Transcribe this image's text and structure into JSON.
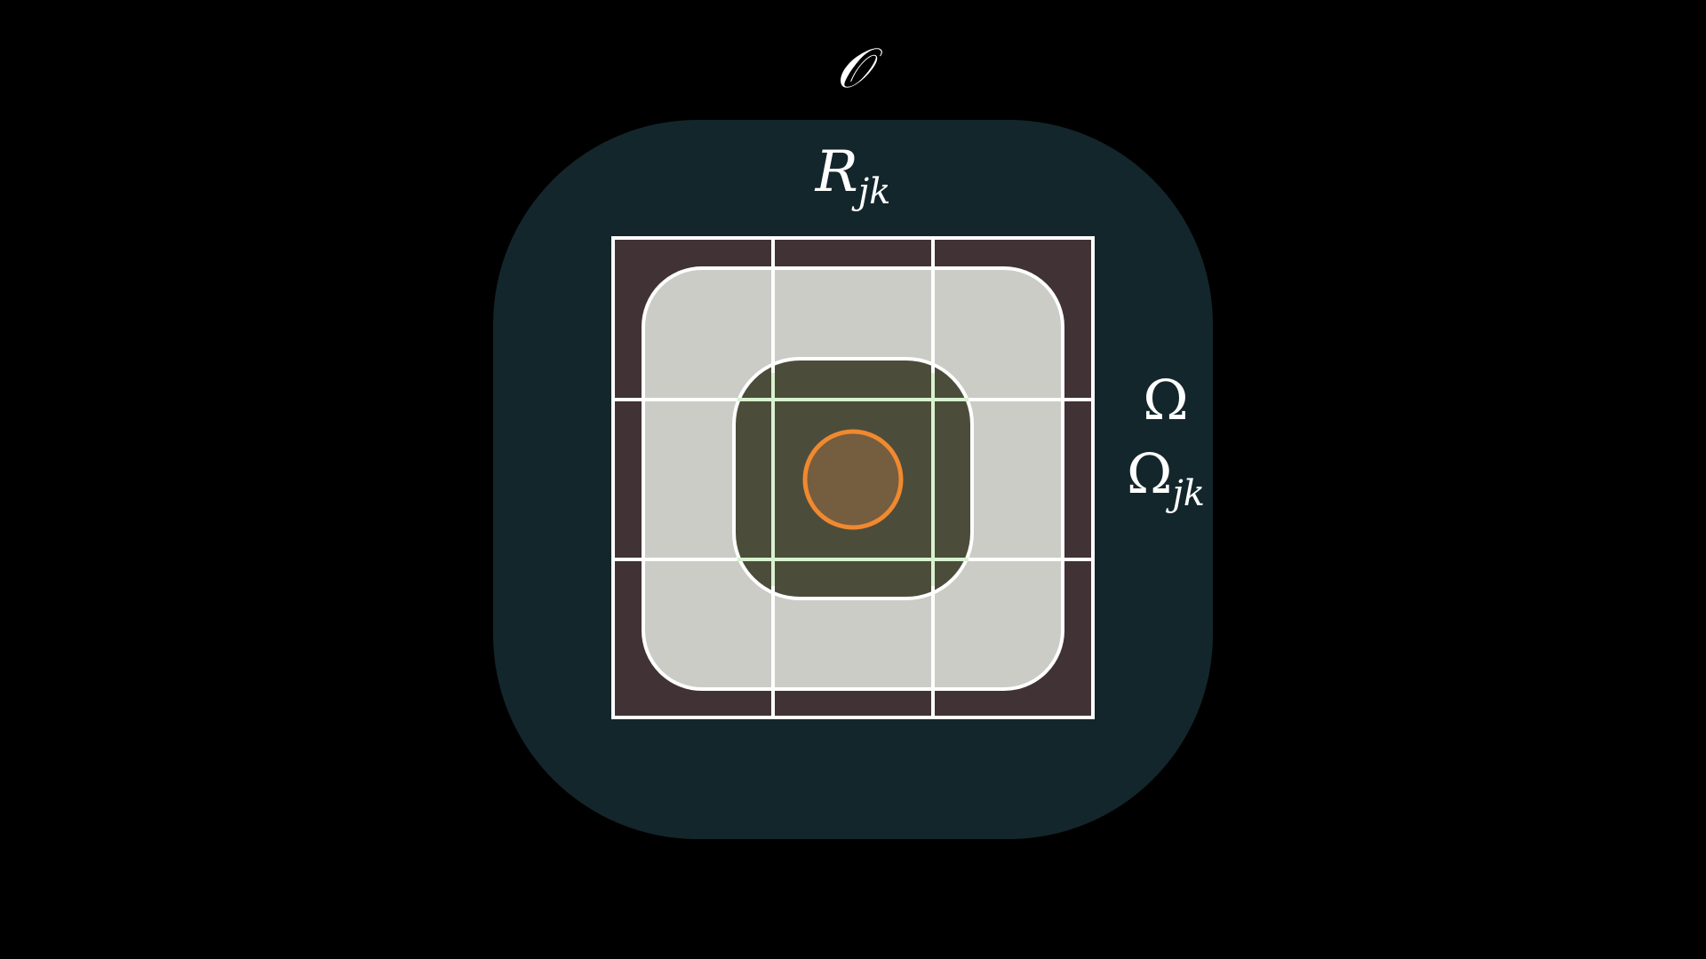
{
  "labels": {
    "outer_set": "𝒪",
    "region": "R",
    "region_sub": "jk",
    "domain": "Ω",
    "subdomain": "Ω",
    "subdomain_sub": "jk"
  },
  "colors": {
    "background": "#000000",
    "outer_set_fill": "#13262b",
    "grid_fill": "#413236",
    "domain_fill": "#cbccc6",
    "subdomain_fill": "#4c4c3b",
    "point_fill": "#755d3f",
    "point_stroke": "#f0892f",
    "stroke": "#ffffff",
    "highlight_stroke": "#d9f2d0"
  }
}
